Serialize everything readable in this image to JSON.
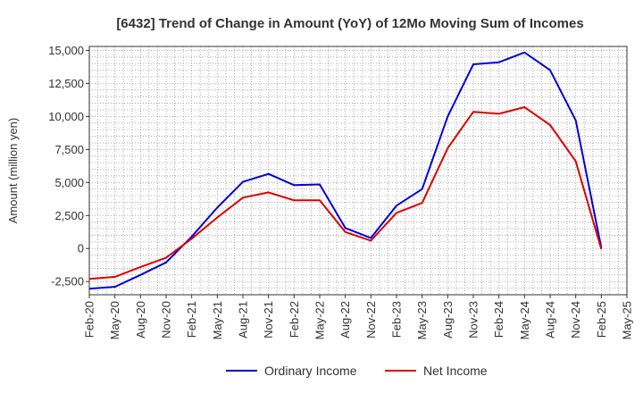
{
  "chart_data": {
    "type": "line",
    "title": "[6432]  Trend of Change in Amount (YoY) of 12Mo Moving Sum of Incomes",
    "ylabel": "Amount (million yen)",
    "xlabel": "",
    "ylim": [
      -3500,
      15300
    ],
    "yticks": [
      -2500,
      0,
      2500,
      5000,
      7500,
      10000,
      12500,
      15000
    ],
    "ytick_labels": [
      "-2,500",
      "0",
      "2,500",
      "5,000",
      "7,500",
      "10,000",
      "12,500",
      "15,000"
    ],
    "xtick_labels": [
      "Feb-20",
      "May-20",
      "Aug-20",
      "Nov-20",
      "Feb-21",
      "May-21",
      "Aug-21",
      "Nov-21",
      "Feb-22",
      "May-22",
      "Aug-22",
      "Nov-22",
      "Feb-23",
      "May-23",
      "Aug-23",
      "Nov-23",
      "Feb-24",
      "May-24",
      "Aug-24",
      "Nov-24",
      "Feb-25",
      "May-25"
    ],
    "grid": true,
    "legend_position": "bottom",
    "series": [
      {
        "name": "Ordinary Income",
        "color": "#0000dd",
        "values": [
          -3050,
          -2900,
          -2000,
          -1050,
          900,
          3100,
          5050,
          5650,
          4800,
          4850,
          1550,
          800,
          3250,
          4500,
          10000,
          13950,
          14100,
          14850,
          13500,
          9700,
          50
        ]
      },
      {
        "name": "Net Income",
        "color": "#dd0000",
        "values": [
          -2300,
          -2150,
          -1400,
          -700,
          750,
          2350,
          3850,
          4250,
          3650,
          3650,
          1250,
          600,
          2700,
          3450,
          7600,
          10350,
          10200,
          10700,
          9350,
          6600,
          -50
        ]
      }
    ]
  }
}
